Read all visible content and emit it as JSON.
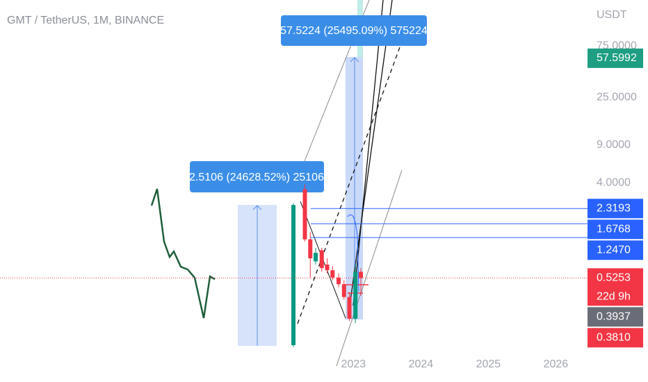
{
  "chart_data": {
    "type": "candlestick",
    "title": "GMT / TetherUS, 1M, BINANCE",
    "y_axis_label": "USDT",
    "log_scale": true,
    "ylim": [
      0.1,
      200
    ],
    "yticks": [
      {
        "value": 75,
        "label": "75.0000"
      },
      {
        "value": 25,
        "label": "25.0000"
      },
      {
        "value": 9,
        "label": "9.0000"
      },
      {
        "value": 4,
        "label": "4.0000"
      }
    ],
    "xlim": [
      2017.76,
      2026.47
    ],
    "xticks": [
      2023,
      2024,
      2025,
      2026
    ],
    "x": [
      2022.11,
      2022.28,
      2022.36,
      2022.44,
      2022.53,
      2022.61,
      2022.69,
      2022.78,
      2022.86,
      2022.94,
      2023.03,
      2023.11
    ],
    "open": [
      0.125,
      3.5,
      1.2,
      0.75,
      0.95,
      0.7,
      0.62,
      0.53,
      0.46,
      0.35,
      0.22,
      0.6
    ],
    "high": [
      2.6,
      3.9,
      1.4,
      1.0,
      1.0,
      0.8,
      0.68,
      0.58,
      0.5,
      0.38,
      0.72,
      0.65
    ],
    "low": [
      0.12,
      1.15,
      0.53,
      0.7,
      0.6,
      0.58,
      0.5,
      0.43,
      0.33,
      0.21,
      0.2,
      0.36
    ],
    "close": [
      2.5,
      1.2,
      0.8,
      0.9,
      0.65,
      0.62,
      0.53,
      0.46,
      0.35,
      0.22,
      0.6,
      0.5253
    ],
    "up_color": "#089981",
    "down_color": "#f23645",
    "measurements": [
      {
        "label": "2.5106 (24628.52%) 25106"
      },
      {
        "label": "57.5224 (25495.09%) 575224"
      }
    ],
    "price_tags": [
      {
        "value": 57.5992,
        "color": "#1e9e82"
      },
      {
        "value": 2.3193,
        "color": "#2962ff",
        "line": true
      },
      {
        "value": 1.6768,
        "color": "#2962ff",
        "line": true
      },
      {
        "value": 1.247,
        "label": "1.2470",
        "color": "#2962ff",
        "line": true
      },
      {
        "value": 0.5253,
        "color": "#f23645",
        "countdown": "22d 9h",
        "price_line": true
      },
      {
        "value": 0.3937,
        "color": "#6a6d78"
      },
      {
        "value": 0.381,
        "label": "0.3810",
        "color": "#f23645"
      }
    ]
  }
}
